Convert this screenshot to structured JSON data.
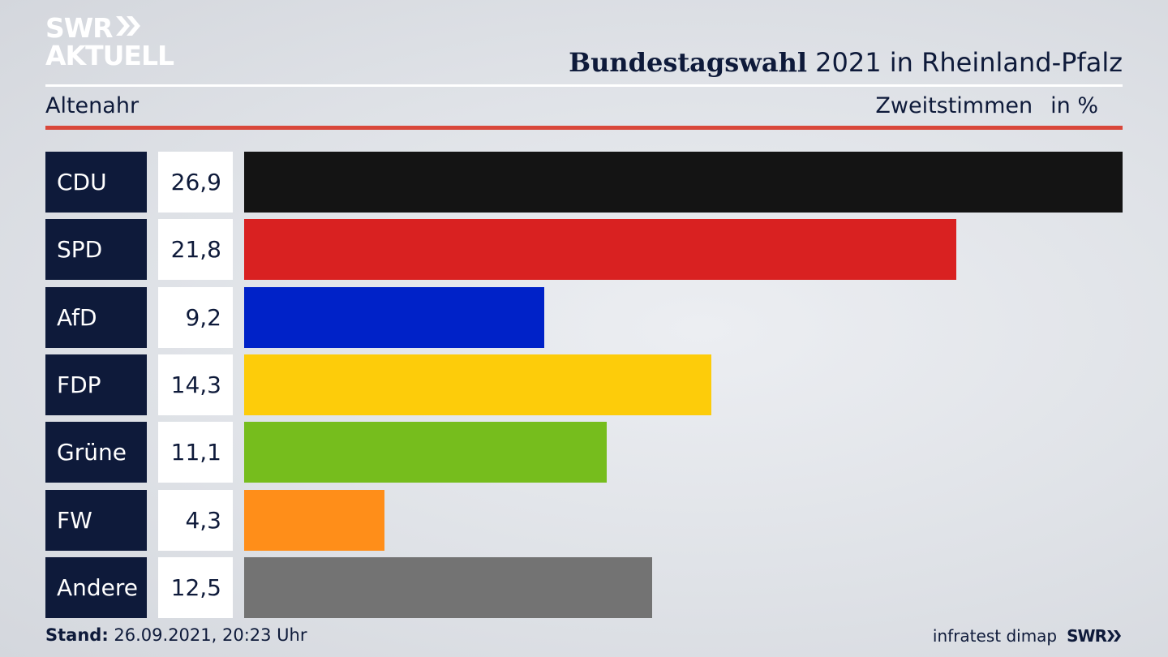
{
  "logo": {
    "line1": "SWR",
    "line2": "AKTUELL",
    "icon": "double-chevron-icon"
  },
  "header": {
    "title_bold": "Bundestagswahl",
    "title_rest": " 2021 in Rheinland-Pfalz",
    "region": "Altenahr",
    "metric": "Zweitstimmen",
    "unit": "in %"
  },
  "colors": {
    "navy": "#0e1a3a",
    "accent_red_rule": "#d9473a"
  },
  "chart_data": {
    "type": "bar",
    "orientation": "horizontal",
    "title": "Bundestagswahl 2021 in Rheinland-Pfalz",
    "subtitle": "Altenahr",
    "ylabel": "Zweitstimmen",
    "unit": "in %",
    "xlim": [
      0,
      26.9
    ],
    "categories": [
      "CDU",
      "SPD",
      "AfD",
      "FDP",
      "Grüne",
      "FW",
      "Andere"
    ],
    "values": [
      26.9,
      21.8,
      9.2,
      14.3,
      11.1,
      4.3,
      12.5
    ],
    "labels": [
      "26,9",
      "21,8",
      "9,2",
      "14,3",
      "11,1",
      "4,3",
      "12,5"
    ],
    "colors": [
      "#141414",
      "#d92121",
      "#0022c8",
      "#fdcc0a",
      "#76bd1d",
      "#ff8e19",
      "#737373"
    ]
  },
  "footer": {
    "stand_label": "Stand:",
    "stand_value": " 26.09.2021, 20:23 Uhr",
    "source": "infratest dimap",
    "brand": "SWR"
  }
}
